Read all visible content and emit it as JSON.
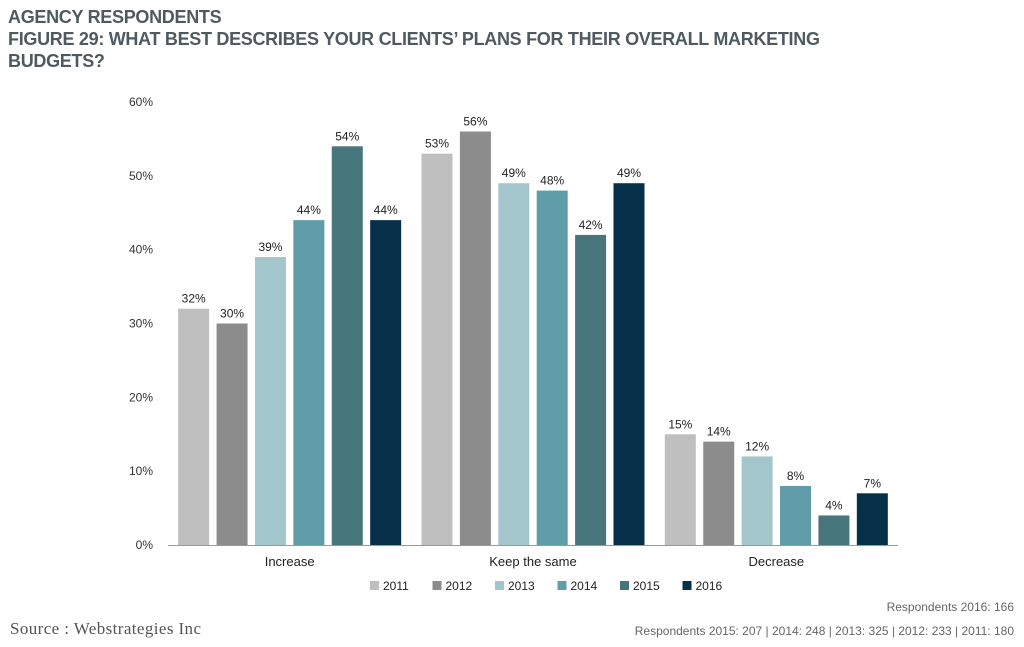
{
  "header": {
    "kicker": "AGENCY RESPONDENTS",
    "title": "FIGURE 29: WHAT BEST DESCRIBES YOUR CLIENTS’ PLANS FOR THEIR OVERALL MARKETING BUDGETS?"
  },
  "chart_data": {
    "type": "bar",
    "title": "FIGURE 29: WHAT BEST DESCRIBES YOUR CLIENTS’ PLANS FOR THEIR OVERALL MARKETING BUDGETS?",
    "xlabel": "",
    "ylabel": "",
    "ylim": [
      0,
      60
    ],
    "yticks": [
      0,
      10,
      20,
      30,
      40,
      50,
      60
    ],
    "ytick_labels": [
      "0%",
      "10%",
      "20%",
      "30%",
      "40%",
      "50%",
      "60%"
    ],
    "categories": [
      "Increase",
      "Keep the same",
      "Decrease"
    ],
    "series": [
      {
        "name": "2011",
        "color": "#bfbfbf",
        "values": [
          32,
          53,
          15
        ]
      },
      {
        "name": "2012",
        "color": "#8c8c8c",
        "values": [
          30,
          56,
          14
        ]
      },
      {
        "name": "2013",
        "color": "#a2c6cc",
        "values": [
          39,
          49,
          12
        ]
      },
      {
        "name": "2014",
        "color": "#5f9ea8",
        "values": [
          44,
          48,
          8
        ]
      },
      {
        "name": "2015",
        "color": "#46757b",
        "values": [
          54,
          42,
          4
        ]
      },
      {
        "name": "2016",
        "color": "#06304a",
        "values": [
          44,
          49,
          7
        ]
      }
    ],
    "value_suffix": "%",
    "legend_position": "bottom",
    "grid": false
  },
  "footer": {
    "source": "Source : Webstrategies Inc",
    "respondents_2016": "Respondents 2016: 166",
    "respondents_prior": "Respondents 2015: 207 | 2014: 248 | 2013: 325 | 2012: 233 | 2011: 180"
  }
}
